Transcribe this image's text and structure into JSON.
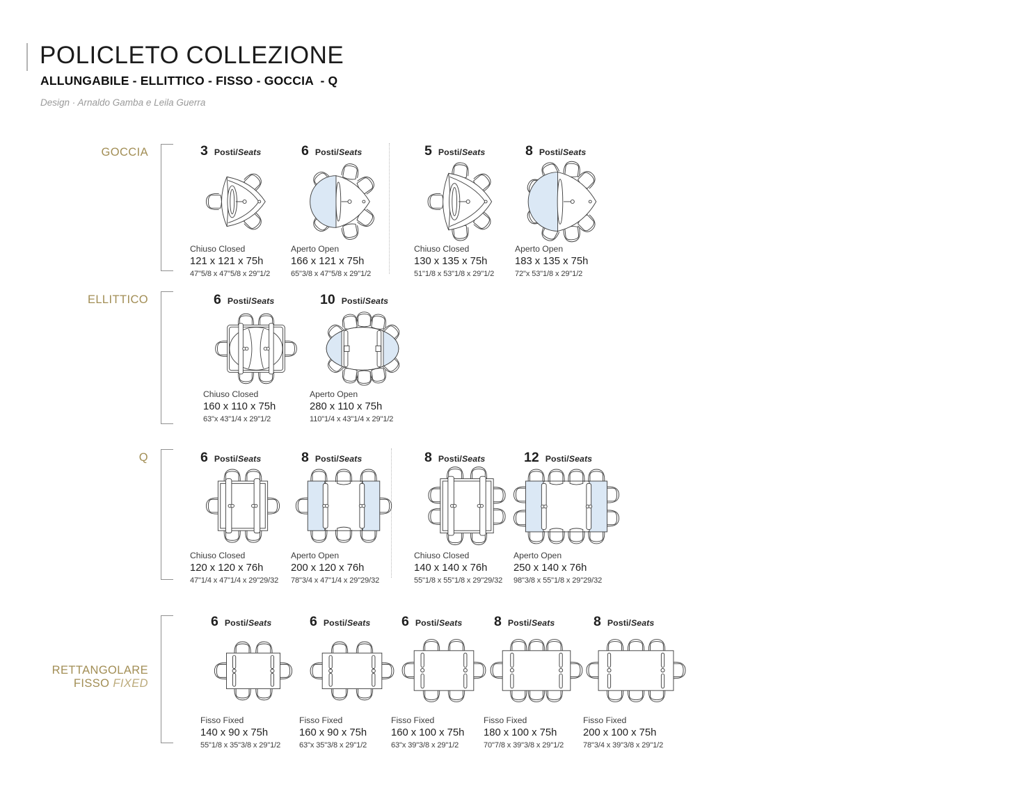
{
  "header": {
    "title": "POLICLETO COLLEZIONE",
    "subtitle": "ALLUNGABILE - ELLITTICO - FISSO - GOCCIA  - Q",
    "design_credit": "Design · Arnaldo Gamba e Leila Guerra"
  },
  "labels": {
    "posti": "Posti/",
    "seats": "Seats"
  },
  "colors": {
    "gold": "#a28e55",
    "gold_light": "#bcab7c",
    "diagram_blue": "#dbe8f5",
    "line": "#3f3f3f"
  },
  "sections": [
    {
      "name": "GOCCIA",
      "cells": [
        {
          "seats": "3",
          "state": "Chiuso Closed",
          "dims_cm": "121 x 121 x 75h",
          "dims_in": "47\"5/8 x 47\"5/8 x 29\"1/2"
        },
        {
          "seats": "6",
          "state": "Aperto Open",
          "dims_cm": "166 x 121 x 75h",
          "dims_in": "65\"3/8 x 47\"5/8 x 29\"1/2"
        },
        {
          "seats": "5",
          "state": "Chiuso Closed",
          "dims_cm": "130 x 135 x 75h",
          "dims_in": "51\"1/8 x 53\"1/8 x 29\"1/2"
        },
        {
          "seats": "8",
          "state": "Aperto Open",
          "dims_cm": "183 x 135 x 75h",
          "dims_in": "72\"x 53\"1/8 x 29\"1/2"
        }
      ]
    },
    {
      "name": "ELLITTICO",
      "cells": [
        {
          "seats": "6",
          "state": "Chiuso Closed",
          "dims_cm": "160 x 110 x 75h",
          "dims_in": "63\"x 43\"1/4 x 29\"1/2"
        },
        {
          "seats": "10",
          "state": "Aperto Open",
          "dims_cm": "280 x 110 x 75h",
          "dims_in": "110\"1/4 x 43\"1/4 x 29\"1/2"
        }
      ]
    },
    {
      "name": "Q",
      "cells": [
        {
          "seats": "6",
          "state": "Chiuso Closed",
          "dims_cm": "120 x 120 x 76h",
          "dims_in": "47\"1/4 x 47\"1/4 x 29\"29/32"
        },
        {
          "seats": "8",
          "state": "Aperto Open",
          "dims_cm": "200 x 120 x 76h",
          "dims_in": "78\"3/4 x 47\"1/4 x 29\"29/32"
        },
        {
          "seats": "8",
          "state": "Chiuso Closed",
          "dims_cm": "140 x 140 x 76h",
          "dims_in": "55\"1/8 x 55\"1/8 x 29\"29/32"
        },
        {
          "seats": "12",
          "state": "Aperto Open",
          "dims_cm": "250 x 140 x 76h",
          "dims_in": "98\"3/8 x 55\"1/8 x 29\"29/32"
        }
      ]
    },
    {
      "name_line1": "RETTANGOLARE",
      "name_line2": "FISSO",
      "name_line2_en": "FIXED",
      "cells": [
        {
          "seats": "6",
          "state": "Fisso Fixed",
          "dims_cm": "140 x 90 x 75h",
          "dims_in": "55\"1/8 x 35\"3/8 x 29\"1/2"
        },
        {
          "seats": "6",
          "state": "Fisso Fixed",
          "dims_cm": "160 x 90 x 75h",
          "dims_in": "63\"x 35\"3/8 x 29\"1/2"
        },
        {
          "seats": "6",
          "state": "Fisso Fixed",
          "dims_cm": "160 x 100 x 75h",
          "dims_in": "63\"x 39\"3/8 x 29\"1/2"
        },
        {
          "seats": "8",
          "state": "Fisso Fixed",
          "dims_cm": "180 x 100 x 75h",
          "dims_in": "70\"7/8 x 39\"3/8 x 29\"1/2"
        },
        {
          "seats": "8",
          "state": "Fisso Fixed",
          "dims_cm": "200 x 100 x 75h",
          "dims_in": "78\"3/4 x 39\"3/8 x 29\"1/2"
        }
      ]
    }
  ]
}
